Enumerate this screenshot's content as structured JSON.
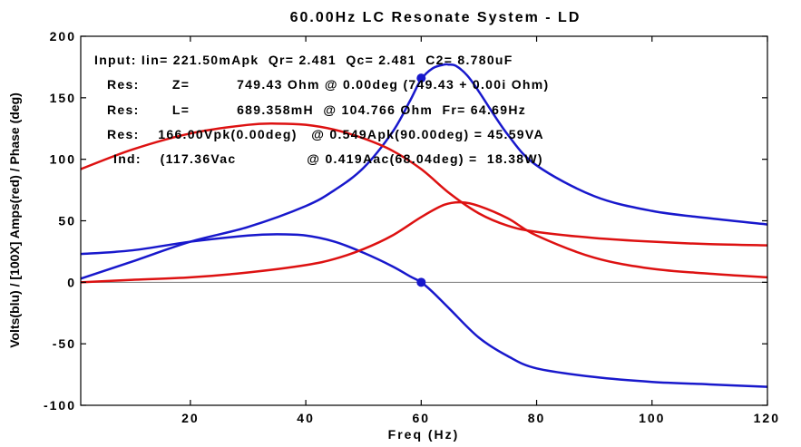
{
  "chart_data": {
    "type": "line",
    "title": "60.00Hz LC Resonate System - LD",
    "xlabel": "Freq (Hz)",
    "ylabel": "Volts(blu)  /  [100X] Amps(red) / Phase (deg)",
    "xlim": [
      1,
      120
    ],
    "ylim": [
      -100,
      200
    ],
    "x_ticks": [
      "20",
      "40",
      "60",
      "80",
      "100",
      "120"
    ],
    "x_tick_values": [
      20,
      40,
      60,
      80,
      100,
      120
    ],
    "y_ticks": [
      "200",
      "150",
      "100",
      "50",
      "0",
      "-50",
      "-100"
    ],
    "y_tick_values": [
      200,
      150,
      100,
      50,
      0,
      -50,
      -100
    ],
    "zero_line": true,
    "grid": false,
    "legend": "none",
    "colors": {
      "blue": "#1818cc",
      "red": "#dd1111",
      "axis": "#000000",
      "zero": "#777777"
    },
    "annotations": [
      "Input: Iin= 221.50mApk  Qr= 2.481  Qc= 2.481  C2= 8.780uF",
      "Res:       Z=          749.43 Ohm @ 0.00deg (749.43 + 0.00i Ohm)",
      "Res:       L=          689.358mH  @ 104.766 Ohm  Fr= 64.69Hz",
      "Res:    166.00Vpk(0.00deg)   @ 0.549Apk(90.00deg) = 45.59VA",
      "Ind:    (117.36Vac               @ 0.419Aac(68.04deg) =  18.38W)"
    ],
    "series": [
      {
        "color": "blue",
        "x": [
          1,
          10,
          20,
          30,
          40,
          45,
          50,
          55,
          58,
          60,
          62,
          64,
          64.69,
          66,
          68,
          70,
          75,
          80,
          90,
          100,
          110,
          120
        ],
        "y": [
          3,
          17,
          33,
          45,
          62,
          75,
          93,
          122,
          147,
          165,
          174,
          177,
          177,
          176,
          168,
          155,
          120,
          95,
          70,
          58,
          52,
          47
        ]
      },
      {
        "color": "blue",
        "x": [
          1,
          10,
          20,
          30,
          35,
          40,
          45,
          50,
          55,
          58,
          60,
          62,
          65,
          70,
          75,
          80,
          90,
          100,
          110,
          120
        ],
        "y": [
          23,
          26,
          33,
          38,
          39,
          38,
          33,
          24,
          13,
          5,
          0,
          -8,
          -22,
          -45,
          -60,
          -70,
          -77,
          -81,
          -83,
          -85
        ]
      },
      {
        "color": "red",
        "x": [
          1,
          10,
          20,
          30,
          35,
          40,
          45,
          50,
          55,
          60,
          65,
          70,
          75,
          80,
          90,
          100,
          110,
          120
        ],
        "y": [
          92,
          108,
          121,
          128,
          129,
          128,
          124,
          117,
          107,
          92,
          72,
          56,
          46,
          41,
          36,
          33,
          31,
          30
        ]
      },
      {
        "color": "red",
        "x": [
          1,
          10,
          20,
          30,
          40,
          45,
          50,
          55,
          60,
          64,
          67,
          70,
          75,
          80,
          90,
          100,
          110,
          120
        ],
        "y": [
          0,
          2,
          4,
          8,
          14,
          19,
          27,
          38,
          53,
          63,
          65,
          62,
          52,
          38,
          20,
          11,
          7,
          4
        ]
      }
    ],
    "markers": [
      {
        "color": "blue",
        "x": 60,
        "y": 166
      },
      {
        "color": "blue",
        "x": 60,
        "y": 0
      }
    ]
  }
}
